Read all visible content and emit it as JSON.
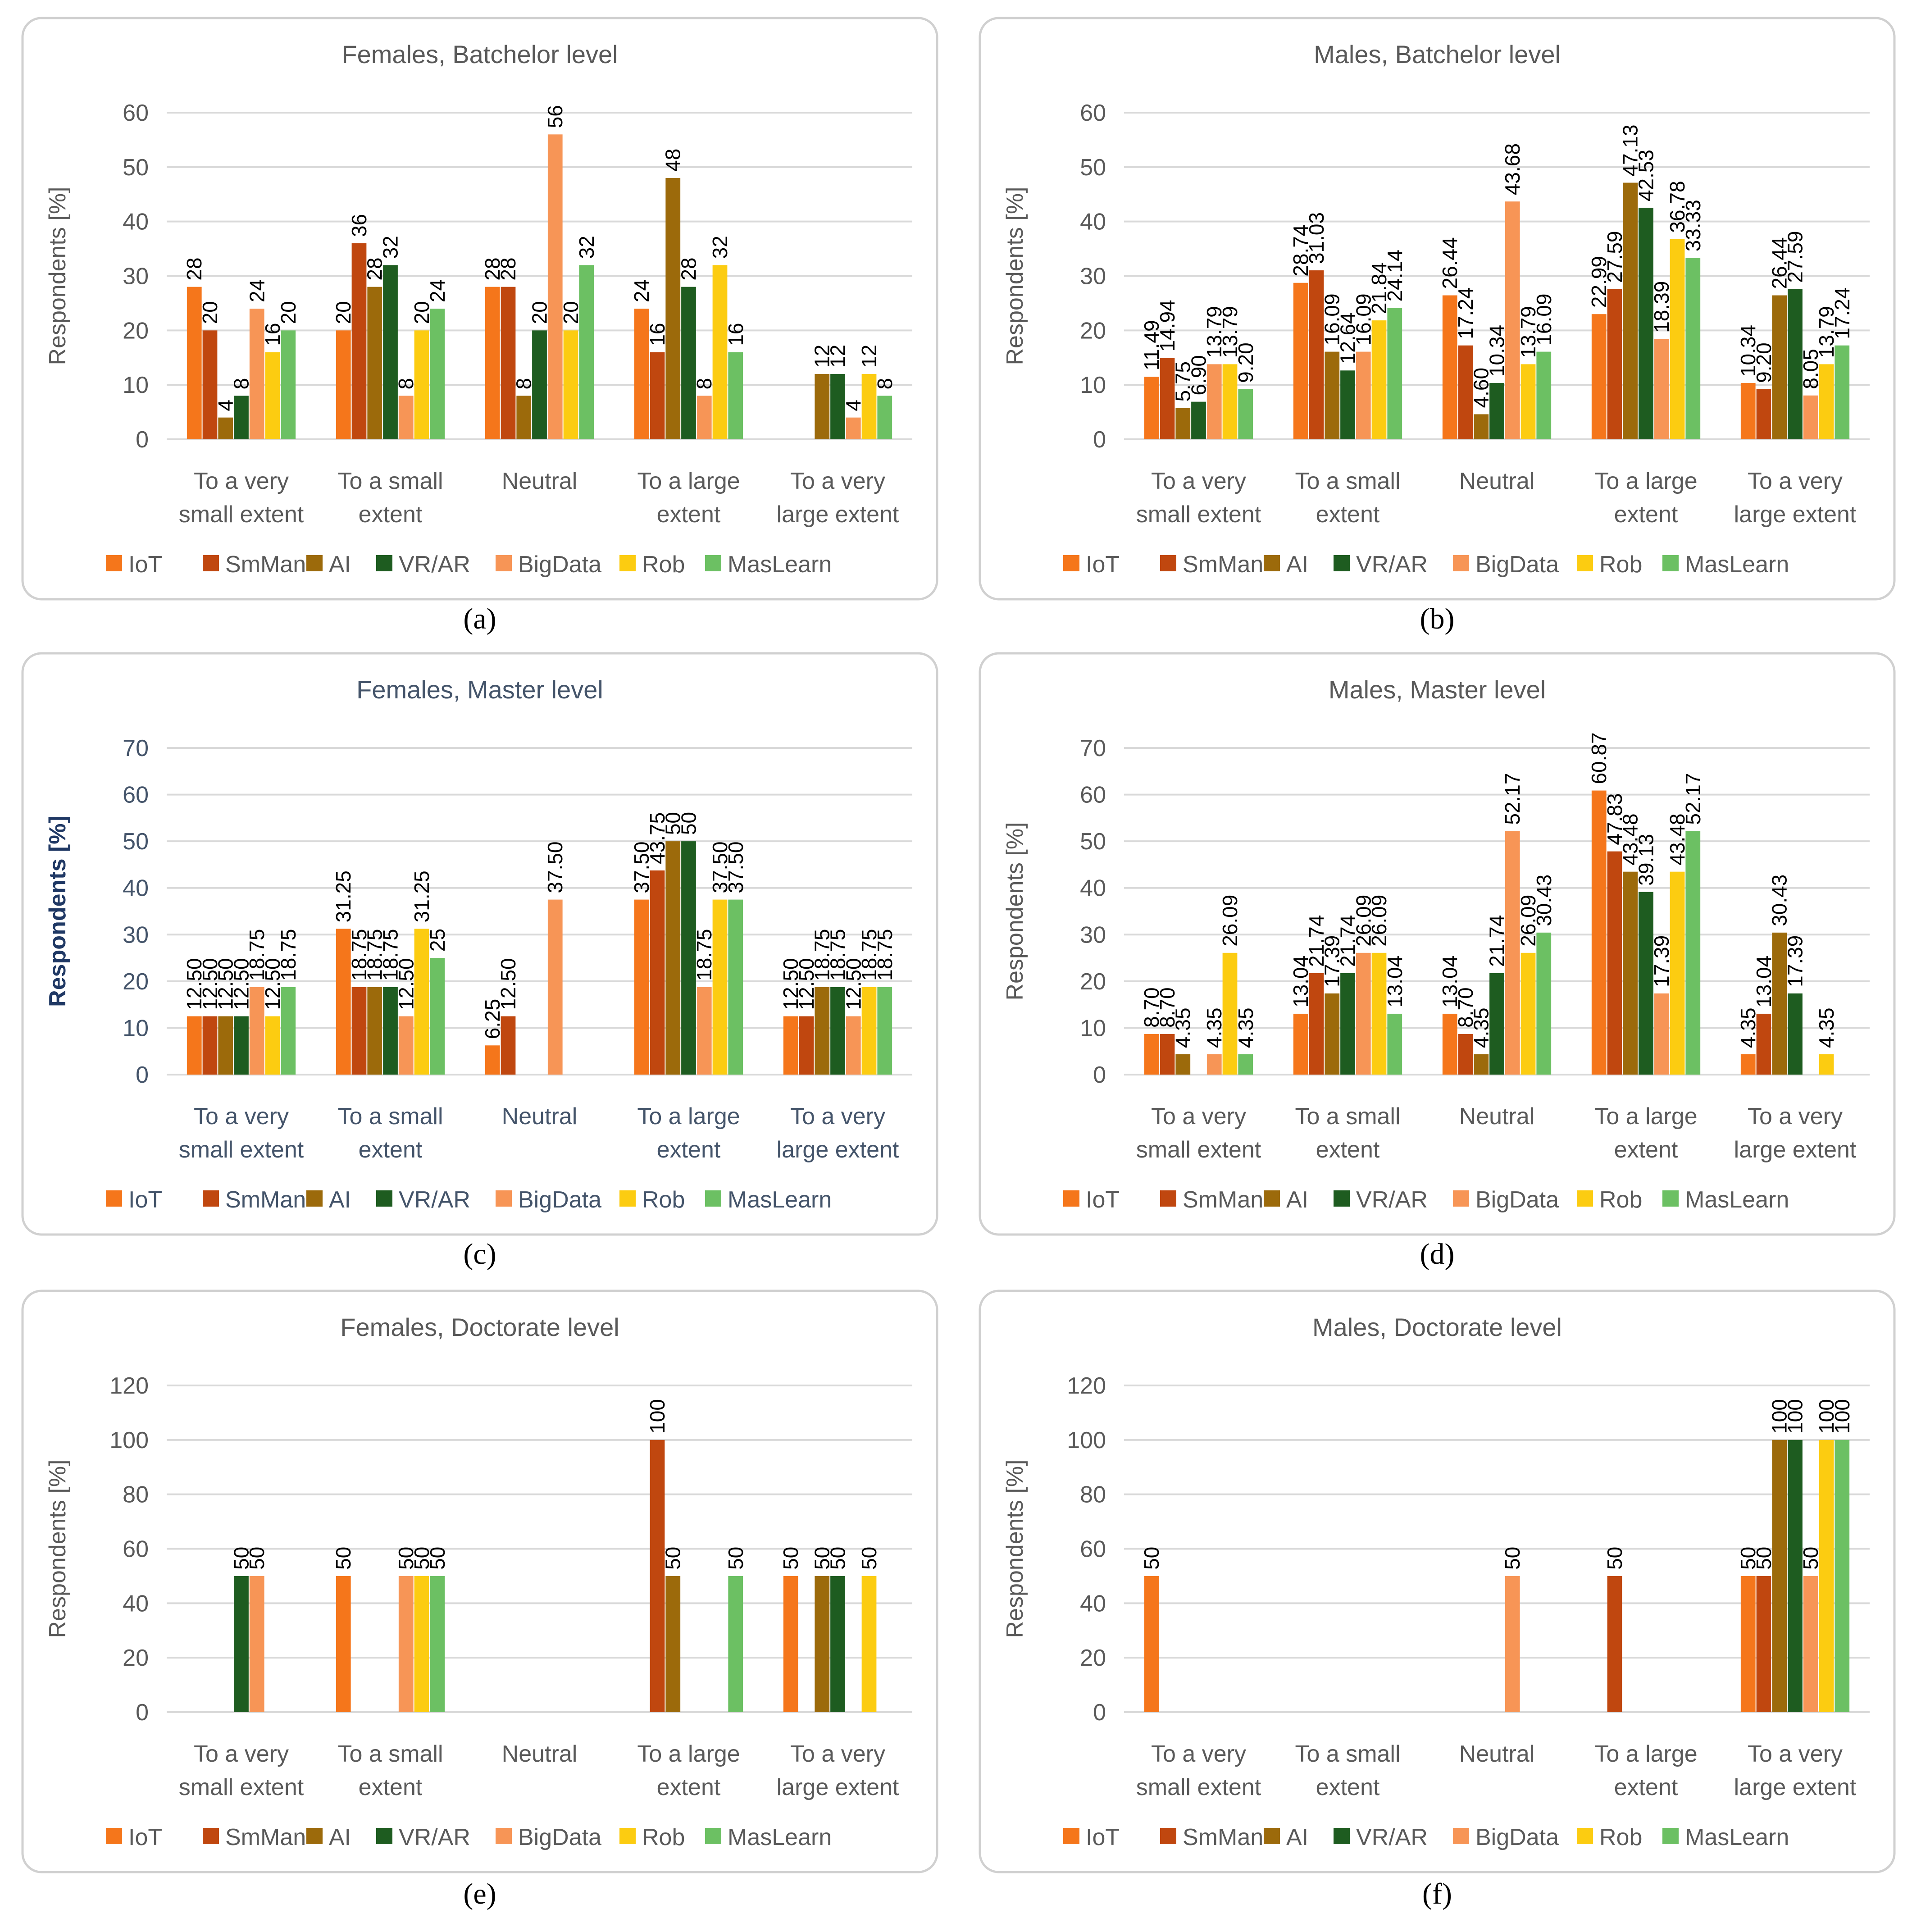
{
  "figure": {
    "panels_count": 6
  },
  "colors": {
    "IoT": "#f5761b",
    "SmMan": "#c0470f",
    "AI": "#9c6a0b",
    "VR/AR": "#1e5c20",
    "BigData": "#f79556",
    "Rob": "#fccc11",
    "MasLearn": "#6cc063",
    "grid": "#d9d9d9",
    "axis_text": "#595959",
    "panel_border": "#d0d0d0"
  },
  "chart_data": [
    {
      "type": "bar",
      "caption": "(a)",
      "title": "Females, Batchelor level",
      "ylabel": "Respondents [%]",
      "ylim": [
        0,
        60
      ],
      "yticks": [
        0,
        10,
        20,
        30,
        40,
        50,
        60
      ],
      "categories": [
        "To a very small extent",
        "To a small extent",
        "Neutral",
        "To a large extent",
        "To a very large extent"
      ],
      "series": [
        {
          "name": "IoT",
          "values": [
            28,
            20,
            28,
            24,
            null
          ],
          "labels": [
            "28",
            "20",
            "28",
            "24",
            ""
          ]
        },
        {
          "name": "SmMan",
          "values": [
            20,
            36,
            28,
            16,
            null
          ],
          "labels": [
            "20",
            "36",
            "28",
            "16",
            ""
          ]
        },
        {
          "name": "AI",
          "values": [
            4,
            28,
            8,
            48,
            12
          ],
          "labels": [
            "4",
            "28",
            "8",
            "48",
            "12"
          ]
        },
        {
          "name": "VR/AR",
          "values": [
            8,
            32,
            20,
            28,
            12
          ],
          "labels": [
            "8",
            "32",
            "20",
            "28",
            "12"
          ]
        },
        {
          "name": "BigData",
          "values": [
            24,
            8,
            56,
            8,
            4
          ],
          "labels": [
            "24",
            "8",
            "56",
            "8",
            "4"
          ]
        },
        {
          "name": "Rob",
          "values": [
            16,
            20,
            20,
            32,
            12
          ],
          "labels": [
            "16",
            "20",
            "20",
            "32",
            "12"
          ]
        },
        {
          "name": "MasLearn",
          "values": [
            20,
            24,
            32,
            16,
            8
          ],
          "labels": [
            "20",
            "24",
            "32",
            "16",
            "8"
          ]
        }
      ]
    },
    {
      "type": "bar",
      "caption": "(b)",
      "title": "Males, Batchelor level",
      "ylabel": "Respondents [%]",
      "ylim": [
        0,
        60
      ],
      "yticks": [
        0,
        10,
        20,
        30,
        40,
        50,
        60
      ],
      "categories": [
        "To a very small extent",
        "To a small extent",
        "Neutral",
        "To a large extent",
        "To a very large extent"
      ],
      "series": [
        {
          "name": "IoT",
          "values": [
            11.49,
            28.74,
            26.44,
            22.99,
            10.34
          ],
          "labels": [
            "11.49",
            "28.74",
            "26.44",
            "22.99",
            "10.34"
          ]
        },
        {
          "name": "SmMan",
          "values": [
            14.94,
            31.03,
            17.24,
            27.59,
            9.2
          ],
          "labels": [
            "14.94",
            "31.03",
            "17.24",
            "27.59",
            "9.20"
          ]
        },
        {
          "name": "AI",
          "values": [
            5.75,
            16.09,
            4.6,
            47.13,
            26.44
          ],
          "labels": [
            "5.75",
            "16.09",
            "4.60",
            "47.13",
            "26.44"
          ]
        },
        {
          "name": "VR/AR",
          "values": [
            6.9,
            12.64,
            10.34,
            42.53,
            27.59
          ],
          "labels": [
            "6.90",
            "12.64",
            "10.34",
            "42.53",
            "27.59"
          ]
        },
        {
          "name": "BigData",
          "values": [
            13.79,
            16.09,
            43.68,
            18.39,
            8.05
          ],
          "labels": [
            "13.79",
            "16.09",
            "43.68",
            "18.39",
            "8.05"
          ]
        },
        {
          "name": "Rob",
          "values": [
            13.79,
            21.84,
            13.79,
            36.78,
            13.79
          ],
          "labels": [
            "13.79",
            "21.84",
            "13.79",
            "36.78",
            "13.79"
          ]
        },
        {
          "name": "MasLearn",
          "values": [
            9.2,
            24.14,
            16.09,
            33.33,
            17.24
          ],
          "labels": [
            "9.20",
            "24.14",
            "16.09",
            "33.33",
            "17.24"
          ]
        }
      ]
    },
    {
      "type": "bar",
      "caption": "(c)",
      "title": "Females, Master level",
      "ylabel": "Respondents [%]",
      "ylim": [
        0,
        70
      ],
      "yticks": [
        0,
        10,
        20,
        30,
        40,
        50,
        60,
        70
      ],
      "categories": [
        "To a very small extent",
        "To a small extent",
        "Neutral",
        "To a large extent",
        "To a very large extent"
      ],
      "series": [
        {
          "name": "IoT",
          "values": [
            12.5,
            31.25,
            6.25,
            37.5,
            12.5
          ],
          "labels": [
            "12.50",
            "31.25",
            "6.25",
            "37.50",
            "12.50"
          ]
        },
        {
          "name": "SmMan",
          "values": [
            12.5,
            18.75,
            12.5,
            43.75,
            12.5
          ],
          "labels": [
            "12.50",
            "18.75",
            "12.50",
            "43.75",
            "12.50"
          ]
        },
        {
          "name": "AI",
          "values": [
            12.5,
            18.75,
            null,
            50,
            18.75
          ],
          "labels": [
            "12.50",
            "18.75",
            "",
            "50",
            "18.75"
          ]
        },
        {
          "name": "VR/AR",
          "values": [
            12.5,
            18.75,
            null,
            50,
            18.75
          ],
          "labels": [
            "12.50",
            "18.75",
            "",
            "50",
            "18.75"
          ]
        },
        {
          "name": "BigData",
          "values": [
            18.75,
            12.5,
            37.5,
            18.75,
            12.5
          ],
          "labels": [
            "18.75",
            "12.50",
            "37.50",
            "18.75",
            "12.50"
          ]
        },
        {
          "name": "Rob",
          "values": [
            12.5,
            31.25,
            null,
            37.5,
            18.75
          ],
          "labels": [
            "12.50",
            "31.25",
            "",
            "37.50",
            "18.75"
          ]
        },
        {
          "name": "MasLearn",
          "values": [
            18.75,
            25,
            null,
            37.5,
            18.75
          ],
          "labels": [
            "18.75",
            "25",
            "",
            "37.50",
            "18.75"
          ]
        }
      ]
    },
    {
      "type": "bar",
      "caption": "(d)",
      "title": "Males, Master level",
      "ylabel": "Respondents [%]",
      "ylim": [
        0,
        70
      ],
      "yticks": [
        0,
        10,
        20,
        30,
        40,
        50,
        60,
        70
      ],
      "categories": [
        "To a very small extent",
        "To a small extent",
        "Neutral",
        "To a large extent",
        "To a very large extent"
      ],
      "series": [
        {
          "name": "IoT",
          "values": [
            8.7,
            13.04,
            13.04,
            60.87,
            4.35
          ],
          "labels": [
            "8.70",
            "13.04",
            "13.04",
            "60.87",
            "4.35"
          ]
        },
        {
          "name": "SmMan",
          "values": [
            8.7,
            21.74,
            8.7,
            47.83,
            13.04
          ],
          "labels": [
            "8.70",
            "21.74",
            "8.70",
            "47.83",
            "13.04"
          ]
        },
        {
          "name": "AI",
          "values": [
            4.35,
            17.39,
            4.35,
            43.48,
            30.43
          ],
          "labels": [
            "4.35",
            "17.39",
            "4.35",
            "43.48",
            "30.43"
          ]
        },
        {
          "name": "VR/AR",
          "values": [
            null,
            21.74,
            21.74,
            39.13,
            17.39
          ],
          "labels": [
            "",
            "21.74",
            "21.74",
            "39.13",
            "17.39"
          ]
        },
        {
          "name": "BigData",
          "values": [
            4.35,
            26.09,
            52.17,
            17.39,
            null
          ],
          "labels": [
            "4.35",
            "26.09",
            "52.17",
            "17.39",
            ""
          ]
        },
        {
          "name": "Rob",
          "values": [
            26.09,
            26.09,
            26.09,
            43.48,
            4.35
          ],
          "labels": [
            "26.09",
            "26.09",
            "26.09",
            "43.48",
            "4.35"
          ]
        },
        {
          "name": "MasLearn",
          "values": [
            4.35,
            13.04,
            30.43,
            52.17,
            null
          ],
          "labels": [
            "4.35",
            "13.04",
            "30.43",
            "52.17",
            ""
          ]
        }
      ]
    },
    {
      "type": "bar",
      "caption": "(e)",
      "title": "Females, Doctorate level",
      "ylabel": "Respondents [%]",
      "ylim": [
        0,
        120
      ],
      "yticks": [
        0,
        20,
        40,
        60,
        80,
        100,
        120
      ],
      "categories": [
        "To a very small extent",
        "To a small extent",
        "Neutral",
        "To a large extent",
        "To a very large extent"
      ],
      "series": [
        {
          "name": "IoT",
          "values": [
            null,
            50,
            null,
            null,
            50
          ],
          "labels": [
            "",
            "50",
            "",
            "",
            "50"
          ]
        },
        {
          "name": "SmMan",
          "values": [
            null,
            null,
            null,
            100,
            null
          ],
          "labels": [
            "",
            "",
            "",
            "100",
            ""
          ]
        },
        {
          "name": "AI",
          "values": [
            null,
            null,
            null,
            50,
            50
          ],
          "labels": [
            "",
            "",
            "",
            "50",
            "50"
          ]
        },
        {
          "name": "VR/AR",
          "values": [
            50,
            null,
            null,
            null,
            50
          ],
          "labels": [
            "50",
            "",
            "",
            "",
            "50"
          ]
        },
        {
          "name": "BigData",
          "values": [
            50,
            50,
            null,
            null,
            null
          ],
          "labels": [
            "50",
            "50",
            "",
            "",
            ""
          ]
        },
        {
          "name": "Rob",
          "values": [
            null,
            50,
            null,
            null,
            50
          ],
          "labels": [
            "",
            "50",
            "",
            "",
            "50"
          ]
        },
        {
          "name": "MasLearn",
          "values": [
            null,
            50,
            null,
            50,
            null
          ],
          "labels": [
            "",
            "50",
            "",
            "50",
            ""
          ]
        }
      ]
    },
    {
      "type": "bar",
      "caption": "(f)",
      "title": "Males, Doctorate level",
      "ylabel": "Respondents [%]",
      "ylim": [
        0,
        120
      ],
      "yticks": [
        0,
        20,
        40,
        60,
        80,
        100,
        120
      ],
      "categories": [
        "To a very small extent",
        "To a small extent",
        "Neutral",
        "To a large extent",
        "To a very large extent"
      ],
      "series": [
        {
          "name": "IoT",
          "values": [
            50,
            null,
            null,
            null,
            50
          ],
          "labels": [
            "50",
            "",
            "",
            "",
            "50"
          ]
        },
        {
          "name": "SmMan",
          "values": [
            null,
            null,
            null,
            50,
            50
          ],
          "labels": [
            "",
            "",
            "",
            "50",
            "50"
          ]
        },
        {
          "name": "AI",
          "values": [
            null,
            null,
            null,
            null,
            100
          ],
          "labels": [
            "",
            "",
            "",
            "",
            "100"
          ]
        },
        {
          "name": "VR/AR",
          "values": [
            null,
            null,
            null,
            null,
            100
          ],
          "labels": [
            "",
            "",
            "",
            "",
            "100"
          ]
        },
        {
          "name": "BigData",
          "values": [
            null,
            null,
            50,
            null,
            50
          ],
          "labels": [
            "",
            "",
            "50",
            "",
            "50"
          ]
        },
        {
          "name": "Rob",
          "values": [
            null,
            null,
            null,
            null,
            100
          ],
          "labels": [
            "",
            "",
            "",
            "",
            "100"
          ]
        },
        {
          "name": "MasLearn",
          "values": [
            null,
            null,
            null,
            null,
            100
          ],
          "labels": [
            "",
            "",
            "",
            "",
            "100"
          ]
        }
      ]
    }
  ]
}
